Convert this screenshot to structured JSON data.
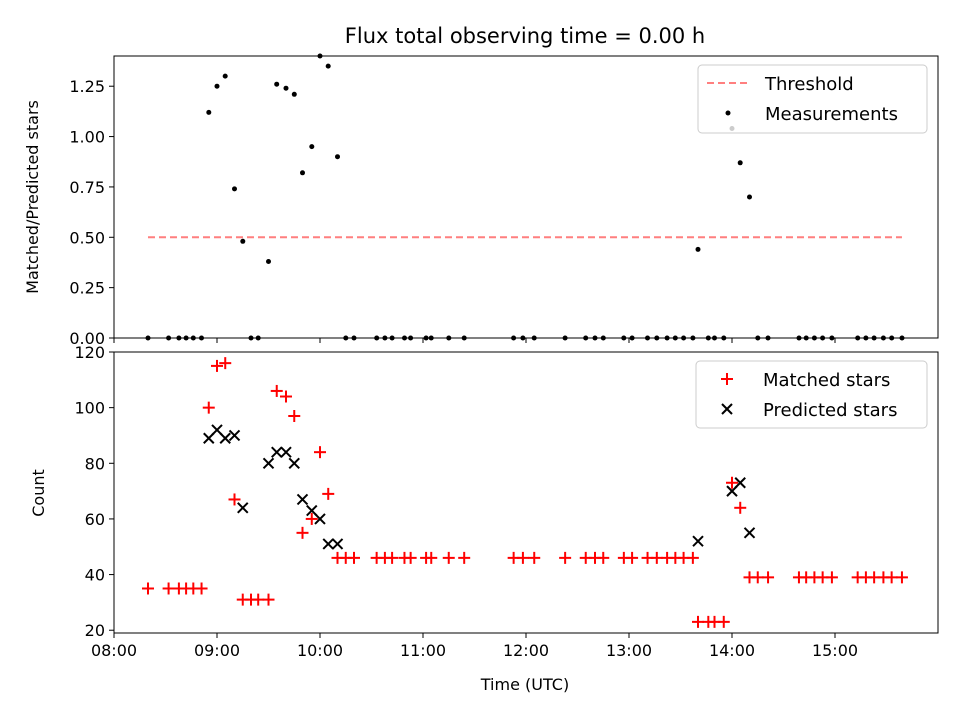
{
  "chart_data": [
    {
      "type": "scatter",
      "title": "Flux total observing time = 0.00 h",
      "xlabel": "",
      "ylabel": "Matched/Predicted stars",
      "xlim": [
        8.0,
        16.0
      ],
      "ylim": [
        0.0,
        1.4
      ],
      "yticks": [
        "0.00",
        "0.25",
        "0.50",
        "0.75",
        "1.00",
        "1.25"
      ],
      "legend_position": "top-right",
      "threshold": {
        "name": "Threshold",
        "value": 0.5,
        "x": [
          8.33,
          15.65
        ],
        "color": "#ff7f7f"
      },
      "series": [
        {
          "name": "Measurements",
          "color": "#000000",
          "points": [
            [
              8.33,
              0
            ],
            [
              8.53,
              0
            ],
            [
              8.63,
              0
            ],
            [
              8.7,
              0
            ],
            [
              8.77,
              0
            ],
            [
              8.85,
              0
            ],
            [
              8.92,
              1.12
            ],
            [
              9.0,
              1.25
            ],
            [
              9.08,
              1.3
            ],
            [
              9.17,
              0.74
            ],
            [
              9.25,
              0.48
            ],
            [
              9.33,
              0
            ],
            [
              9.4,
              0
            ],
            [
              9.5,
              0.38
            ],
            [
              9.58,
              1.26
            ],
            [
              9.67,
              1.24
            ],
            [
              9.75,
              1.21
            ],
            [
              9.83,
              0.82
            ],
            [
              9.92,
              0.95
            ],
            [
              10.0,
              1.4
            ],
            [
              10.08,
              1.35
            ],
            [
              10.17,
              0.9
            ],
            [
              10.25,
              0
            ],
            [
              10.33,
              0
            ],
            [
              10.55,
              0
            ],
            [
              10.63,
              0
            ],
            [
              10.7,
              0
            ],
            [
              10.82,
              0
            ],
            [
              10.88,
              0
            ],
            [
              11.03,
              0
            ],
            [
              11.08,
              0
            ],
            [
              11.25,
              0
            ],
            [
              11.4,
              0
            ],
            [
              11.88,
              0
            ],
            [
              11.97,
              0
            ],
            [
              12.08,
              0
            ],
            [
              12.38,
              0
            ],
            [
              12.58,
              0
            ],
            [
              12.67,
              0
            ],
            [
              12.75,
              0
            ],
            [
              12.95,
              0
            ],
            [
              13.03,
              0
            ],
            [
              13.18,
              0
            ],
            [
              13.27,
              0
            ],
            [
              13.37,
              0
            ],
            [
              13.45,
              0
            ],
            [
              13.53,
              0
            ],
            [
              13.62,
              0
            ],
            [
              13.67,
              0.44
            ],
            [
              13.77,
              0
            ],
            [
              13.83,
              0
            ],
            [
              13.92,
              0
            ],
            [
              14.0,
              1.04
            ],
            [
              14.08,
              0.87
            ],
            [
              14.17,
              0.7
            ],
            [
              14.25,
              0
            ],
            [
              14.35,
              0
            ],
            [
              14.65,
              0
            ],
            [
              14.72,
              0
            ],
            [
              14.8,
              0
            ],
            [
              14.88,
              0
            ],
            [
              14.97,
              0
            ],
            [
              15.22,
              0
            ],
            [
              15.3,
              0
            ],
            [
              15.38,
              0
            ],
            [
              15.47,
              0
            ],
            [
              15.55,
              0
            ],
            [
              15.65,
              0
            ]
          ]
        }
      ]
    },
    {
      "type": "scatter",
      "title": "",
      "xlabel": "Time (UTC)",
      "ylabel": "Count",
      "xlim": [
        8.0,
        16.0
      ],
      "ylim": [
        19,
        120
      ],
      "yticks": [
        "20",
        "40",
        "60",
        "80",
        "100",
        "120"
      ],
      "xticks": [
        "08:00",
        "09:00",
        "10:00",
        "11:00",
        "12:00",
        "13:00",
        "14:00",
        "15:00"
      ],
      "legend_position": "top-right",
      "series": [
        {
          "name": "Matched stars",
          "color": "#ff0000",
          "marker": "plus",
          "points": [
            [
              8.33,
              35
            ],
            [
              8.53,
              35
            ],
            [
              8.63,
              35
            ],
            [
              8.7,
              35
            ],
            [
              8.77,
              35
            ],
            [
              8.85,
              35
            ],
            [
              8.92,
              100
            ],
            [
              9.0,
              115
            ],
            [
              9.08,
              116
            ],
            [
              9.17,
              67
            ],
            [
              9.25,
              31
            ],
            [
              9.33,
              31
            ],
            [
              9.4,
              31
            ],
            [
              9.5,
              31
            ],
            [
              9.58,
              106
            ],
            [
              9.67,
              104
            ],
            [
              9.75,
              97
            ],
            [
              9.83,
              55
            ],
            [
              9.92,
              60
            ],
            [
              10.0,
              84
            ],
            [
              10.08,
              69
            ],
            [
              10.17,
              46
            ],
            [
              10.25,
              46
            ],
            [
              10.33,
              46
            ],
            [
              10.55,
              46
            ],
            [
              10.63,
              46
            ],
            [
              10.7,
              46
            ],
            [
              10.82,
              46
            ],
            [
              10.88,
              46
            ],
            [
              11.03,
              46
            ],
            [
              11.08,
              46
            ],
            [
              11.25,
              46
            ],
            [
              11.4,
              46
            ],
            [
              11.88,
              46
            ],
            [
              11.97,
              46
            ],
            [
              12.08,
              46
            ],
            [
              12.38,
              46
            ],
            [
              12.58,
              46
            ],
            [
              12.67,
              46
            ],
            [
              12.75,
              46
            ],
            [
              12.95,
              46
            ],
            [
              13.03,
              46
            ],
            [
              13.18,
              46
            ],
            [
              13.27,
              46
            ],
            [
              13.37,
              46
            ],
            [
              13.45,
              46
            ],
            [
              13.53,
              46
            ],
            [
              13.62,
              46
            ],
            [
              13.67,
              23
            ],
            [
              13.77,
              23
            ],
            [
              13.83,
              23
            ],
            [
              13.92,
              23
            ],
            [
              14.0,
              73
            ],
            [
              14.08,
              64
            ],
            [
              14.17,
              39
            ],
            [
              14.25,
              39
            ],
            [
              14.35,
              39
            ],
            [
              14.65,
              39
            ],
            [
              14.72,
              39
            ],
            [
              14.8,
              39
            ],
            [
              14.88,
              39
            ],
            [
              14.97,
              39
            ],
            [
              15.22,
              39
            ],
            [
              15.3,
              39
            ],
            [
              15.38,
              39
            ],
            [
              15.47,
              39
            ],
            [
              15.55,
              39
            ],
            [
              15.65,
              39
            ]
          ]
        },
        {
          "name": "Predicted stars",
          "color": "#000000",
          "marker": "x",
          "points": [
            [
              8.92,
              89
            ],
            [
              9.0,
              92
            ],
            [
              9.08,
              89
            ],
            [
              9.17,
              90
            ],
            [
              9.25,
              64
            ],
            [
              9.5,
              80
            ],
            [
              9.58,
              84
            ],
            [
              9.67,
              84
            ],
            [
              9.75,
              80
            ],
            [
              9.83,
              67
            ],
            [
              9.92,
              63
            ],
            [
              10.0,
              60
            ],
            [
              10.08,
              51
            ],
            [
              10.17,
              51
            ],
            [
              13.67,
              52
            ],
            [
              14.0,
              70
            ],
            [
              14.08,
              73
            ],
            [
              14.17,
              55
            ]
          ]
        }
      ]
    }
  ]
}
